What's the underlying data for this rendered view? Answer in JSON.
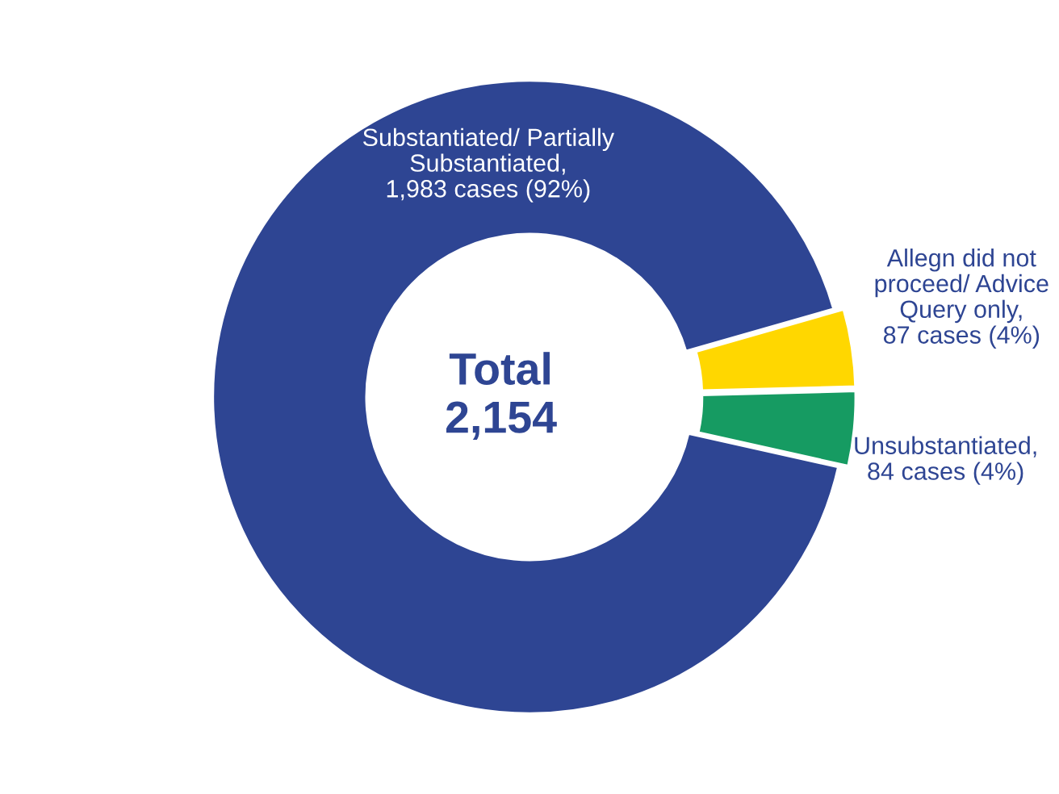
{
  "chart_data": {
    "type": "donut",
    "categories": [
      "Substantiated/ Partially\nSubstantiated,\n1,983 cases (92%)",
      "Allegn did not\nproceed/ Advice\nQuery only,\n87 cases (4%)",
      "Unsubstantiated,\n84 cases (4%)"
    ],
    "values": [
      1983,
      87,
      84
    ],
    "colors": [
      "#2e4593",
      "#ffd700",
      "#169b62"
    ],
    "annotations": [
      "Total\n2,154"
    ],
    "legend": false
  }
}
